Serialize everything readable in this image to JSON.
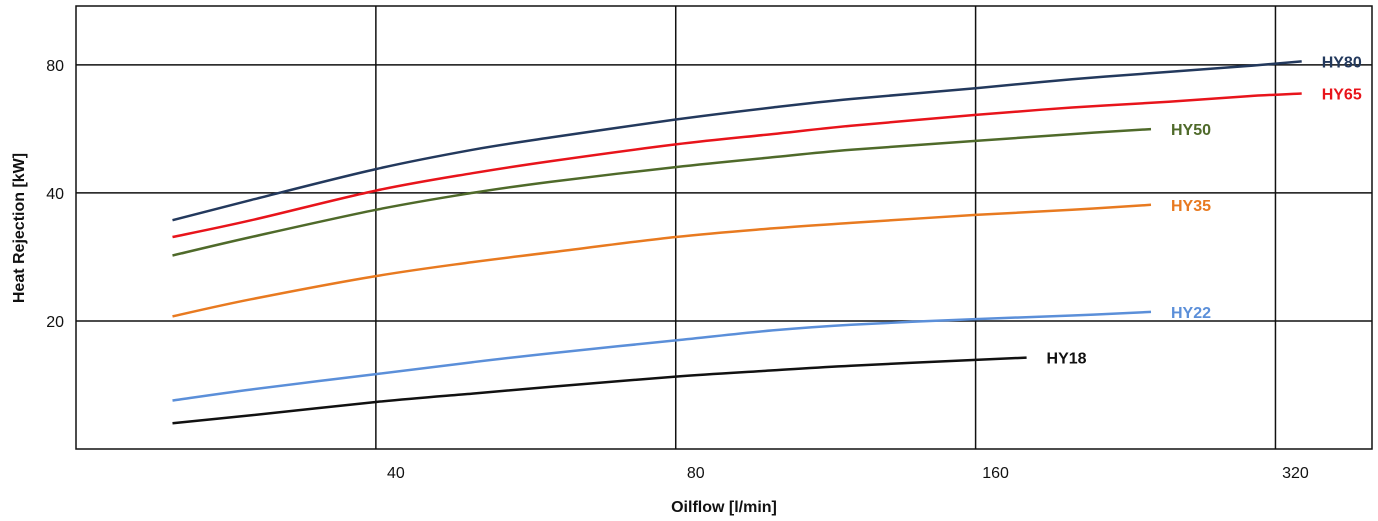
{
  "chart_data": {
    "type": "line",
    "xlabel": "Oilflow [l/min]",
    "ylabel": "Heat Rejection [kW]",
    "x_scale": "log",
    "y_scale": "log",
    "xlim": [
      20,
      400
    ],
    "ylim": [
      10,
      110
    ],
    "x_ticks": [
      40,
      80,
      160,
      320
    ],
    "x_tick_labels": [
      "40",
      "80",
      "160",
      "320"
    ],
    "y_ticks": [
      20,
      40,
      80
    ],
    "y_tick_labels": [
      "20",
      "40",
      "80"
    ],
    "grid": true,
    "legend": "inline labels at line ends",
    "series": [
      {
        "name": "HY80",
        "color": "#23395d",
        "x": [
          25,
          30,
          40,
          50,
          60,
          80,
          100,
          120,
          160,
          200,
          250,
          300,
          340
        ],
        "y": [
          34.5,
          38.5,
          45.5,
          50.5,
          54,
          59.5,
          63.5,
          66.5,
          70.5,
          74,
          77,
          79.5,
          81.5
        ]
      },
      {
        "name": "HY65",
        "color": "#e8141b",
        "x": [
          25,
          30,
          40,
          50,
          60,
          80,
          100,
          120,
          160,
          200,
          250,
          300,
          340
        ],
        "y": [
          31.5,
          34.5,
          40.5,
          44.5,
          47.5,
          52,
          55,
          57.5,
          61,
          63.5,
          65.5,
          67.5,
          68.5
        ]
      },
      {
        "name": "HY50",
        "color": "#4f6a2a",
        "x": [
          25,
          30,
          40,
          50,
          60,
          80,
          100,
          120,
          160,
          200,
          240
        ],
        "y": [
          28.5,
          31.5,
          36.5,
          40,
          42.5,
          46,
          48.5,
          50.5,
          53,
          55,
          56.5
        ]
      },
      {
        "name": "HY35",
        "color": "#e87a20",
        "x": [
          25,
          30,
          40,
          50,
          60,
          80,
          100,
          120,
          160,
          200,
          240
        ],
        "y": [
          20.5,
          22.5,
          25.5,
          27.5,
          29,
          31.5,
          33,
          34,
          35.5,
          36.5,
          37.5
        ]
      },
      {
        "name": "HY22",
        "color": "#5b8fd9",
        "x": [
          25,
          30,
          40,
          50,
          60,
          80,
          100,
          120,
          160,
          200,
          240
        ],
        "y": [
          13,
          13.8,
          15,
          16,
          16.8,
          18,
          19,
          19.6,
          20.2,
          20.6,
          21
        ]
      },
      {
        "name": "HY18",
        "color": "#111111",
        "x": [
          25,
          30,
          40,
          50,
          60,
          80,
          100,
          120,
          160,
          180
        ],
        "y": [
          11.5,
          12,
          12.9,
          13.5,
          14,
          14.8,
          15.3,
          15.7,
          16.2,
          16.4
        ]
      }
    ]
  }
}
